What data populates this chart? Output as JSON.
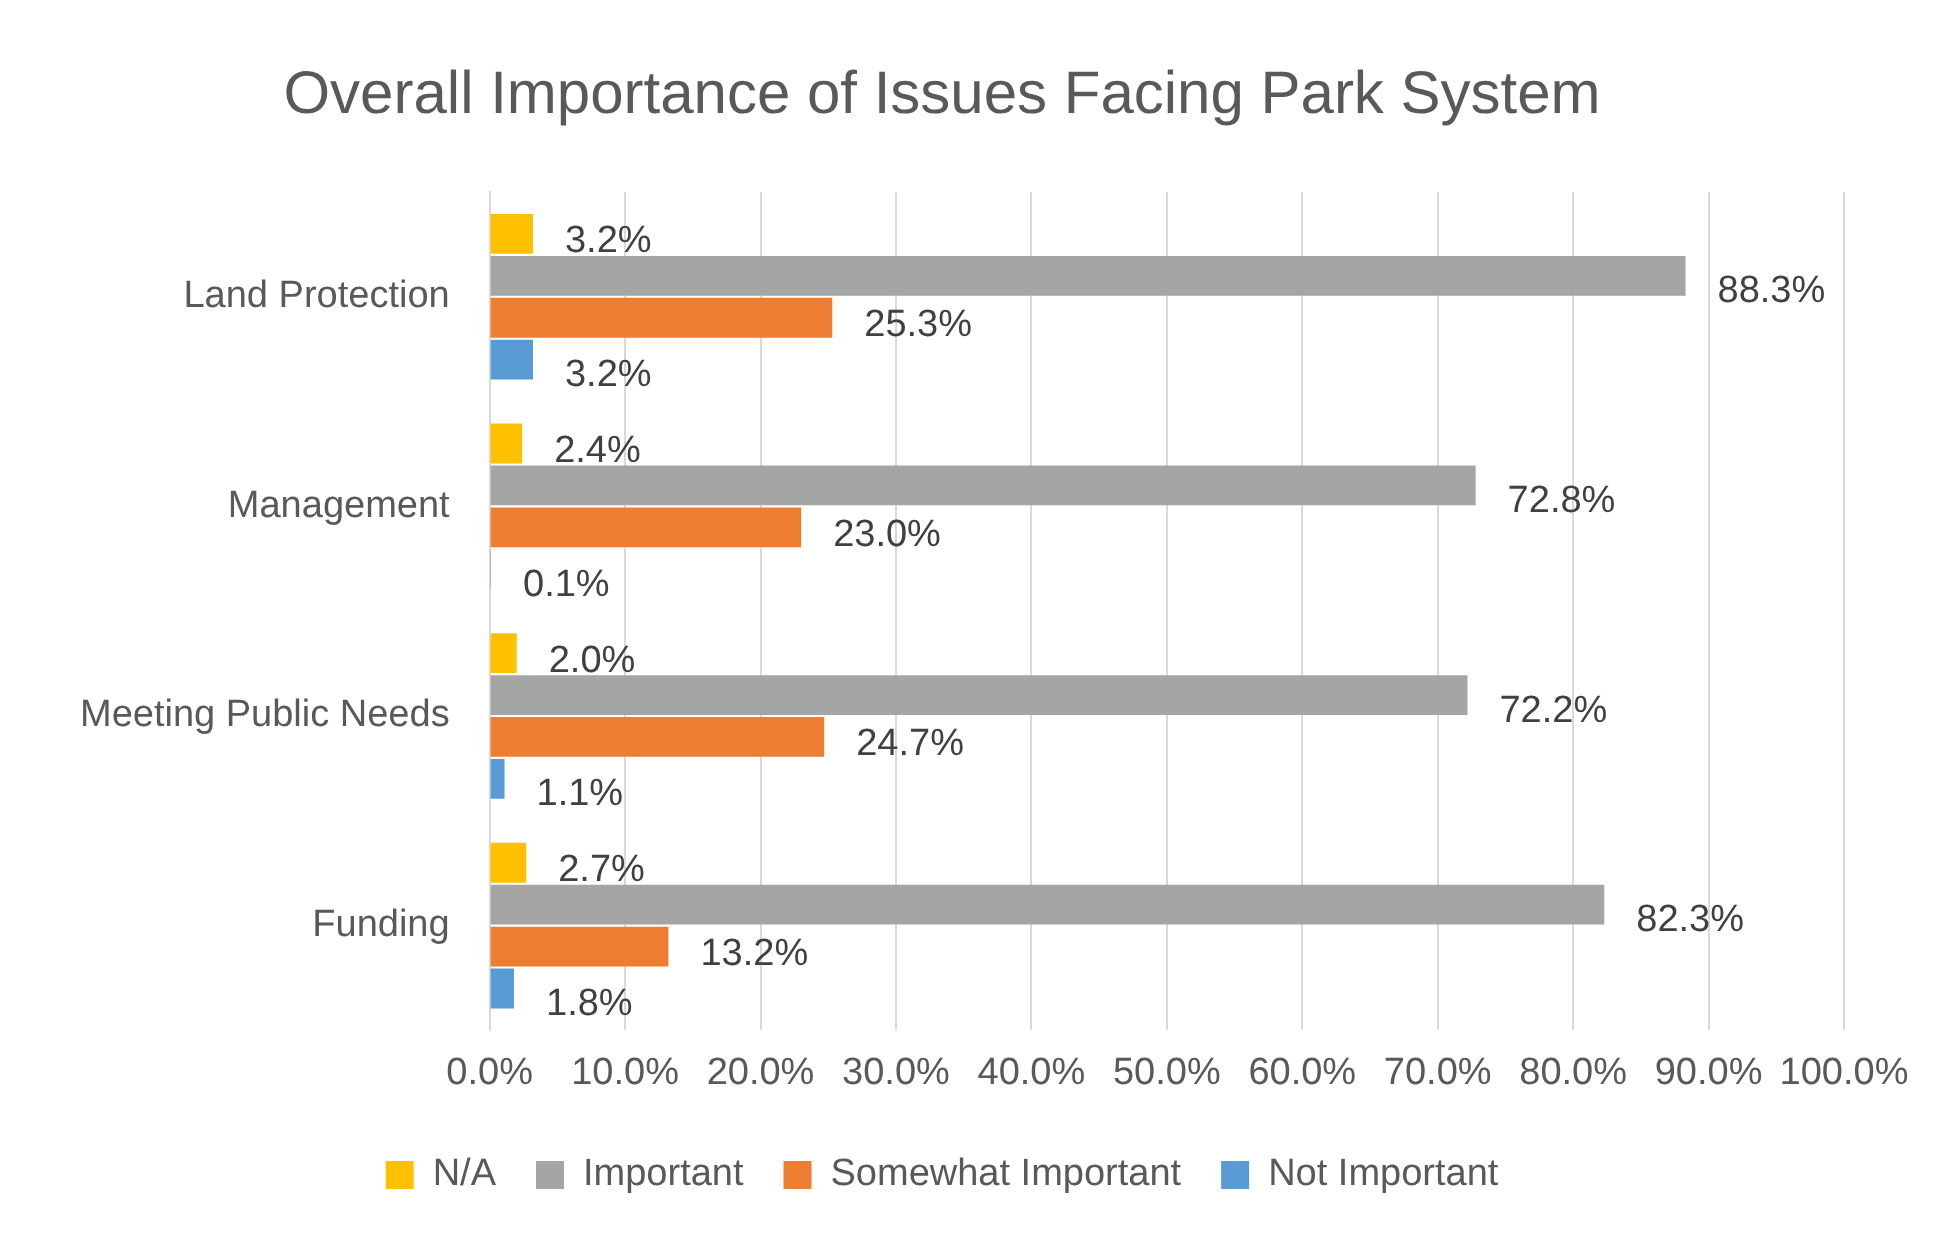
{
  "chart_data": {
    "type": "bar",
    "orientation": "horizontal",
    "title": "Overall Importance of Issues Facing Park System",
    "categories": [
      "Land Protection",
      "Management",
      "Meeting Public Needs",
      "Funding"
    ],
    "series": [
      {
        "name": "N/A",
        "color": "#ffc000",
        "values": [
          3.2,
          2.4,
          2.0,
          2.7
        ],
        "value_labels": [
          "3.2%",
          "2.4%",
          "2.0%",
          "2.7%"
        ]
      },
      {
        "name": "Important",
        "color": "#a5a5a5",
        "values": [
          88.3,
          72.8,
          72.2,
          82.3
        ],
        "value_labels": [
          "88.3%",
          "72.8%",
          "72.2%",
          "82.3%"
        ]
      },
      {
        "name": "Somewhat Important",
        "color": "#ed7d31",
        "values": [
          25.3,
          23.0,
          24.7,
          13.2
        ],
        "value_labels": [
          "25.3%",
          "23.0%",
          "24.7%",
          "13.2%"
        ]
      },
      {
        "name": "Not Important",
        "color": "#5b9bd5",
        "values": [
          3.2,
          0.1,
          1.1,
          1.8
        ],
        "value_labels": [
          "3.2%",
          "0.1%",
          "1.1%",
          "1.8%"
        ]
      }
    ],
    "xlim": [
      0,
      100
    ],
    "xticks": [
      {
        "value": 0,
        "label": "0.0%"
      },
      {
        "value": 10,
        "label": "10.0%"
      },
      {
        "value": 20,
        "label": "20.0%"
      },
      {
        "value": 30,
        "label": "30.0%"
      },
      {
        "value": 40,
        "label": "40.0%"
      },
      {
        "value": 50,
        "label": "50.0%"
      },
      {
        "value": 60,
        "label": "60.0%"
      },
      {
        "value": 70,
        "label": "70.0%"
      },
      {
        "value": 80,
        "label": "80.0%"
      },
      {
        "value": 90,
        "label": "90.0%"
      },
      {
        "value": 100,
        "label": "100.0%"
      }
    ],
    "grid": "x",
    "legend": "bottom"
  }
}
